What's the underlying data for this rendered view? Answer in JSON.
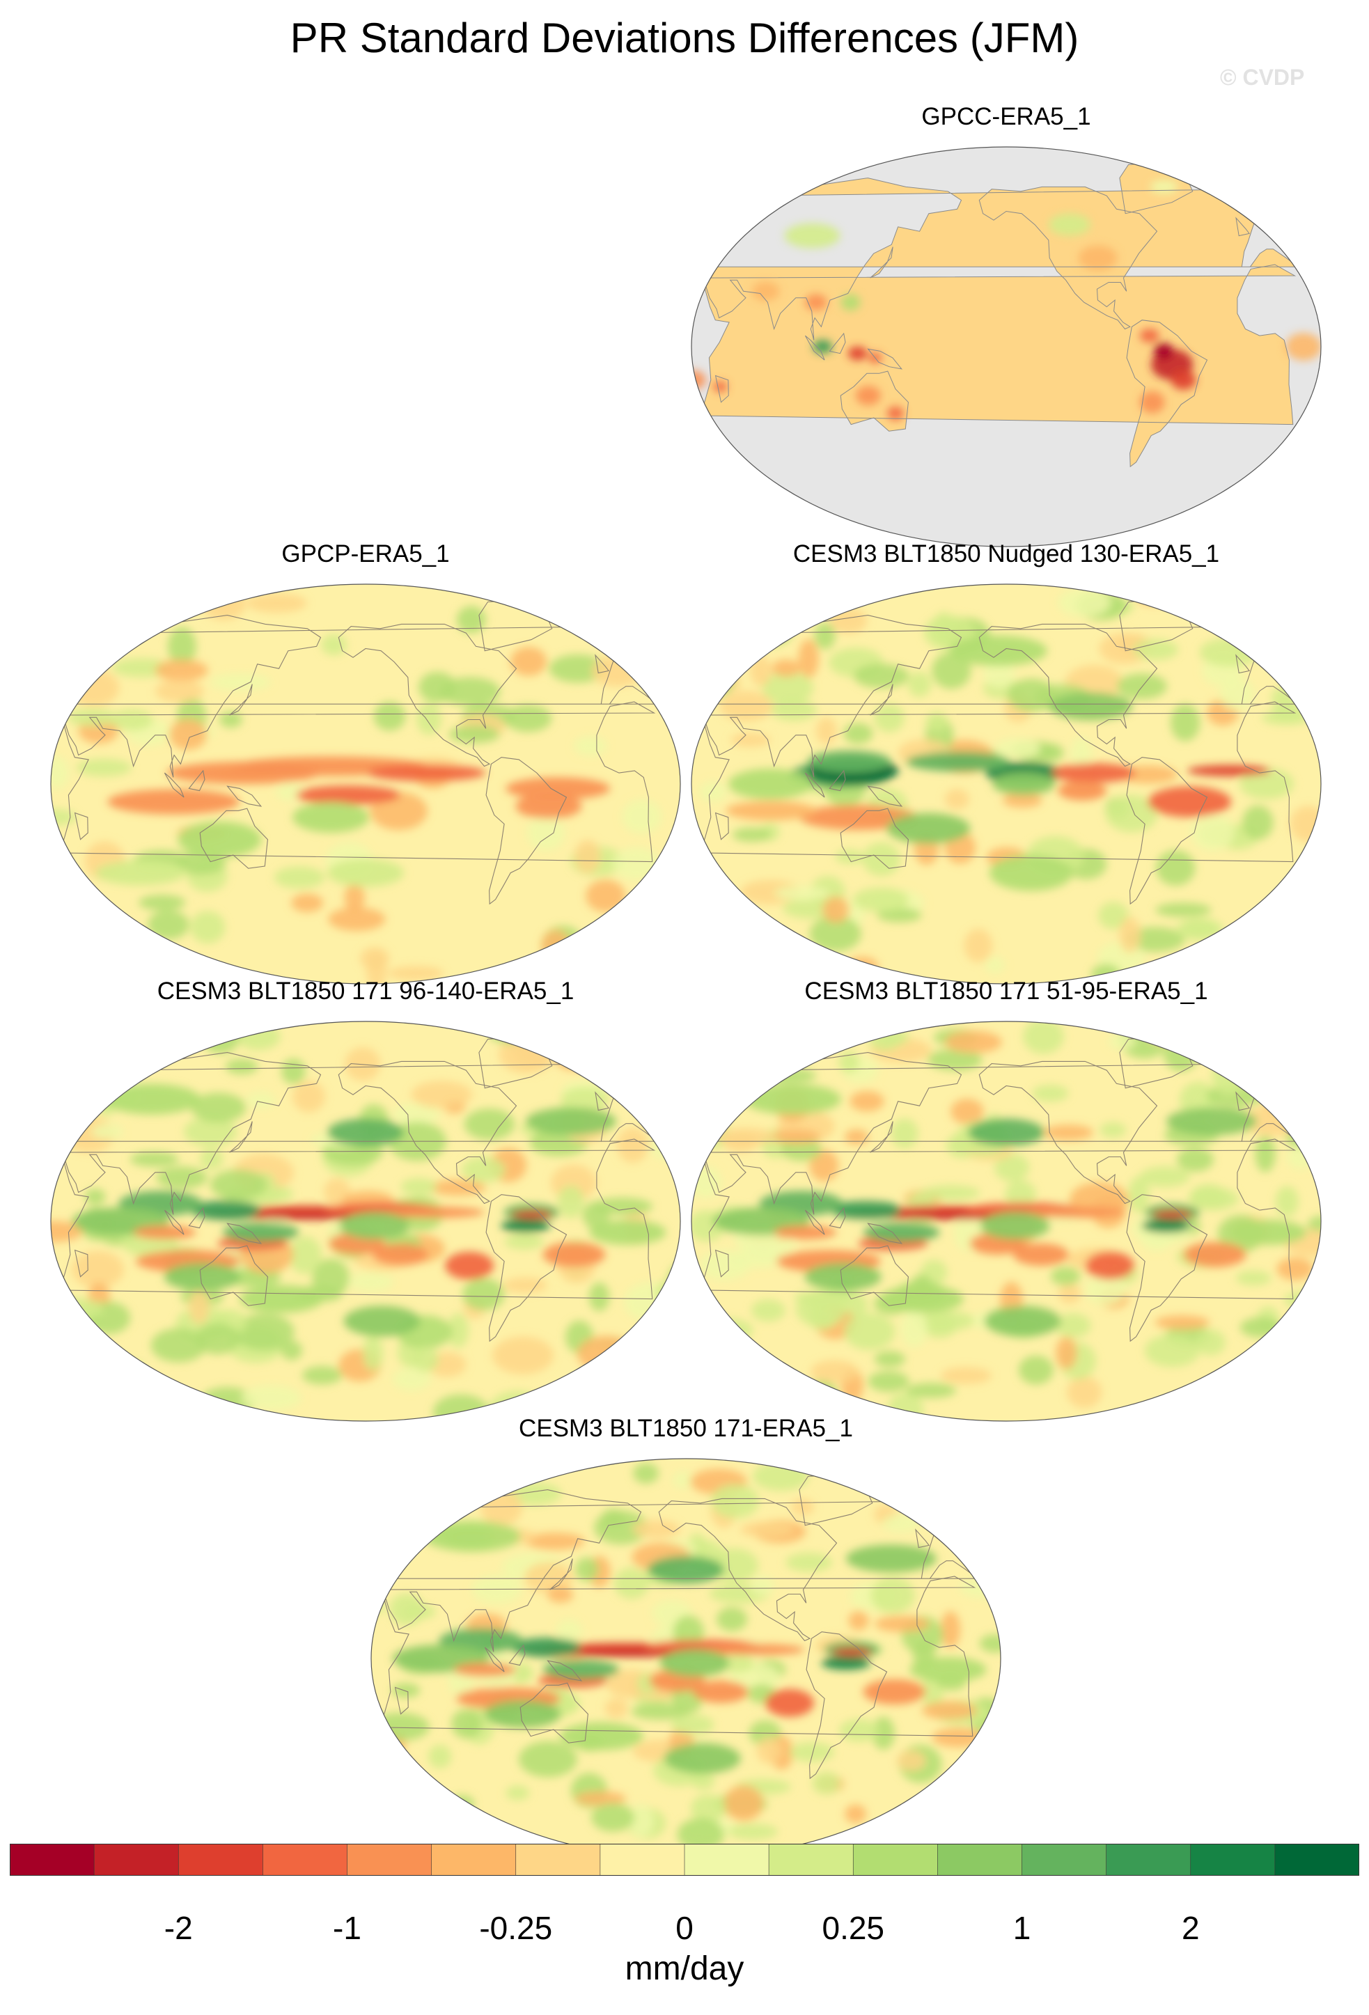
{
  "title": "PR Standard Deviations Differences (JFM)",
  "watermark": "© CVDP",
  "panels": [
    {
      "title": "GPCC-ERA5_1",
      "style": "land_only"
    },
    {
      "title": "GPCP-ERA5_1",
      "style": "obs"
    },
    {
      "title": "CESM3 BLT1850 Nudged 130-ERA5_1",
      "style": "nudged"
    },
    {
      "title": "CESM3 BLT1850 171 96-140-ERA5_1",
      "style": "model"
    },
    {
      "title": "CESM3 BLT1850 171 51-95-ERA5_1",
      "style": "model"
    },
    {
      "title": "CESM3 BLT1850 171-ERA5_1",
      "style": "model"
    }
  ],
  "colorbar": {
    "colors": [
      "#a50026",
      "#c42127",
      "#de3f2e",
      "#f16640",
      "#f99153",
      "#fdb768",
      "#fed687",
      "#fef1a7",
      "#f0f8a9",
      "#d4ec89",
      "#b2dd71",
      "#8cc963",
      "#64b35e",
      "#3a9b54",
      "#168445",
      "#006837"
    ],
    "tick_labels": [
      "-2",
      "-1",
      "-0.25",
      "0",
      "0.25",
      "1",
      "2"
    ],
    "units": "mm/day"
  }
}
